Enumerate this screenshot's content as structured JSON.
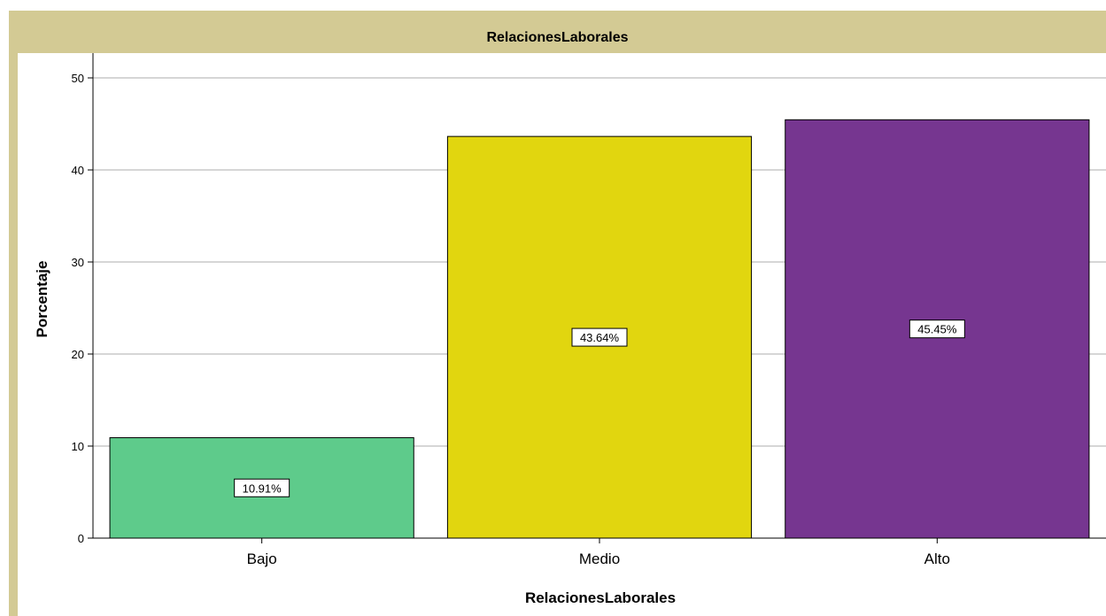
{
  "chart_data": {
    "type": "bar",
    "title": "RelacionesLaborales",
    "xlabel": "RelacionesLaborales",
    "ylabel": "Porcentaje",
    "categories": [
      "Bajo",
      "Medio",
      "Alto"
    ],
    "values": [
      10.91,
      43.64,
      45.45
    ],
    "data_labels": [
      "10.91%",
      "43.64%",
      "45.45%"
    ],
    "colors": [
      "#5ecb8b",
      "#e1d60f",
      "#763690"
    ],
    "ylim": [
      0,
      50
    ],
    "yticks": [
      0,
      10,
      20,
      30,
      40,
      50
    ],
    "grid": true,
    "legend": "none"
  },
  "colors": {
    "frame": "#d3ca94",
    "gridline": "#c8c8c8"
  }
}
